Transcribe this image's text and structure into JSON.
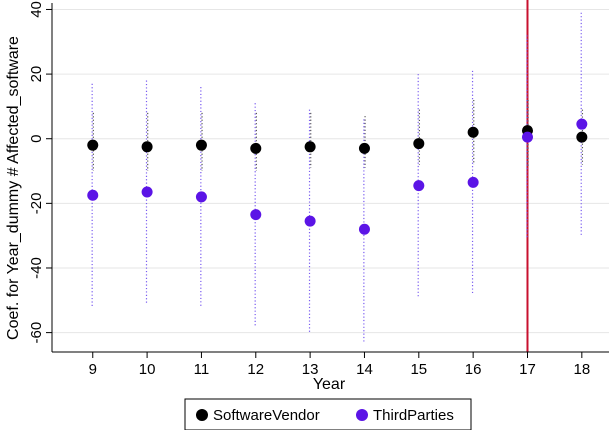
{
  "chart_data": {
    "type": "scatter",
    "xlabel": "Year",
    "ylabel": "Coef. for Year_dummy # Affected_software",
    "x": [
      9,
      10,
      11,
      12,
      13,
      14,
      15,
      16,
      17,
      18
    ],
    "x_ticks": [
      "9",
      "10",
      "11",
      "12",
      "13",
      "14",
      "15",
      "16",
      "17",
      "18"
    ],
    "y_ticks": [
      40,
      20,
      0,
      -20,
      -40,
      -60
    ],
    "ylim": [
      -66,
      42
    ],
    "grid": true,
    "reference_line": {
      "x": 17,
      "color": "#c8102e"
    },
    "legend_position": "bottom",
    "series": [
      {
        "name": "SoftwareVendor",
        "color": "#000000",
        "values": [
          -2,
          -2.5,
          -2,
          -3,
          -2.5,
          -3,
          -1.5,
          2,
          2.5,
          0.5
        ],
        "ci_low": [
          -10,
          -10,
          -10,
          -10,
          -9,
          -9,
          -8,
          -8,
          -9,
          -8
        ],
        "ci_high": [
          8,
          8,
          8,
          8,
          8,
          7,
          9,
          12,
          12,
          9
        ]
      },
      {
        "name": "ThirdParties",
        "color": "#5b14e6",
        "values": [
          -17.5,
          -16.5,
          -18,
          -23.5,
          -25.5,
          -28,
          -14.5,
          -13.5,
          0.5,
          4.5
        ],
        "ci_low": [
          -52,
          -51,
          -52,
          -58,
          -60,
          -63,
          -49,
          -48,
          -31,
          -30
        ],
        "ci_high": [
          17,
          18,
          16,
          11,
          9,
          6,
          20,
          21,
          32,
          39
        ]
      }
    ]
  }
}
